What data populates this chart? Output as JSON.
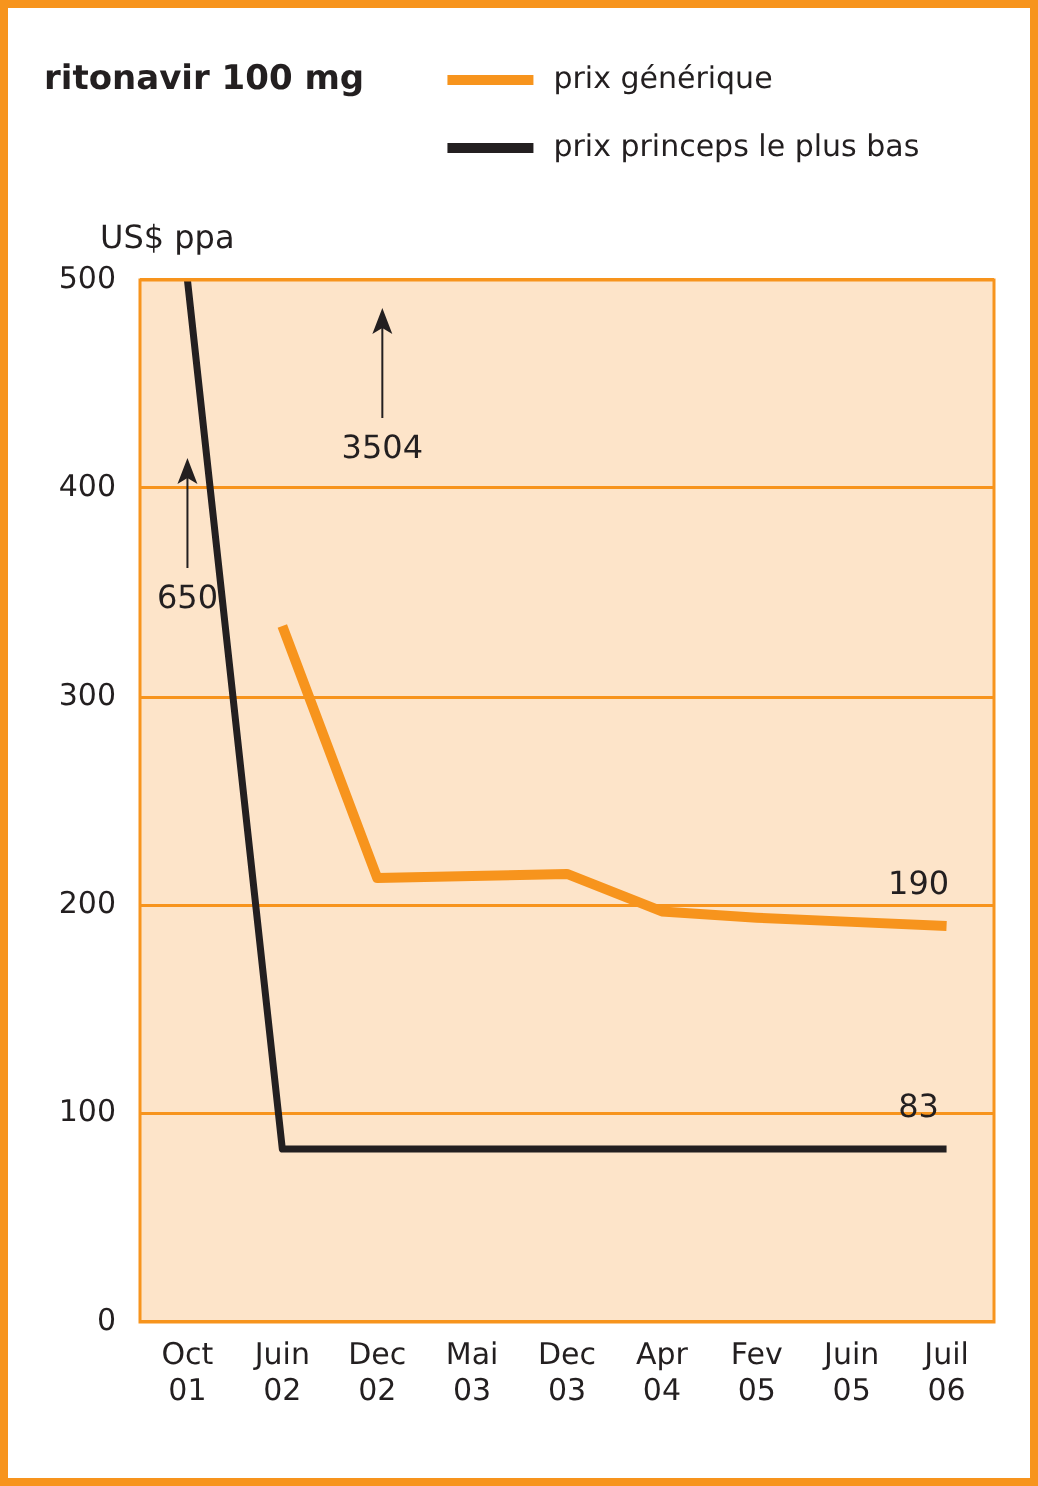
{
  "chart_data": {
    "type": "line",
    "title": "ritonavir 100 mg",
    "ylabel": "US$ ppa",
    "categories": [
      "Oct 01",
      "Juin 02",
      "Dec 02",
      "Mai 03",
      "Dec 03",
      "Apr 04",
      "Fev 05",
      "Juin 05",
      "Juil 06"
    ],
    "ylim": [
      0,
      500
    ],
    "yticks": [
      0,
      100,
      200,
      300,
      400,
      500
    ],
    "series": [
      {
        "name": "prix générique",
        "color": "#f7941d",
        "values": [
          null,
          334,
          213,
          214,
          215,
          197,
          194,
          192,
          190
        ]
      },
      {
        "name": "prix princeps le plus bas",
        "color": "#231f20",
        "values": [
          500,
          83,
          83,
          83,
          83,
          83,
          83,
          83,
          83
        ]
      }
    ],
    "annotations": [
      "650",
      "3504",
      {
        "text": "83",
        "x": "Juil 06",
        "y": 83
      },
      {
        "text": "190",
        "x": "Juil 06",
        "y": 190
      }
    ],
    "grid": "y",
    "legend": "top",
    "marker": "none",
    "line_style": "solid"
  }
}
